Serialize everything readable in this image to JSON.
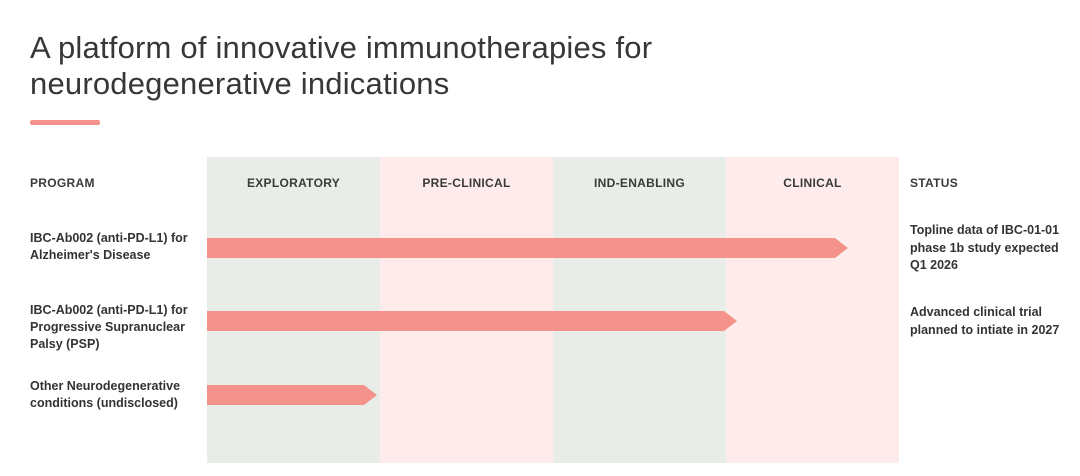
{
  "title": {
    "line1": "A platform of innovative immunotherapies for",
    "line2": "neurodegenerative indications"
  },
  "colors": {
    "accent_salmon": "#f5928b",
    "column_green": "#e9ede7",
    "column_pink": "#fdeceb",
    "text_dark": "#373737"
  },
  "chart_data": {
    "type": "bar",
    "title": "A platform of innovative immunotherapies for neurodegenerative indications",
    "columns": [
      "PROGRAM",
      "EXPLORATORY",
      "PRE-CLINICAL",
      "IND-ENABLING",
      "CLINICAL",
      "STATUS"
    ],
    "phases": [
      "EXPLORATORY",
      "PRE-CLINICAL",
      "IND-ENABLING",
      "CLINICAL"
    ],
    "xlim_phases": [
      0,
      4
    ],
    "rows": [
      {
        "program": "IBC-Ab002 (anti-PD-L1) for Alzheimer's Disease",
        "extent_phases": 3.7,
        "arrow_end_pct": 92.5,
        "status": "Topline data of IBC-01-01 phase 1b study expected Q1 2026"
      },
      {
        "program": "IBC-Ab002 (anti-PD-L1) for Progressive Supranuclear Palsy (PSP)",
        "extent_phases": 3.05,
        "arrow_end_pct": 76.5,
        "status": "Advanced clinical trial planned to intiate in 2027"
      },
      {
        "program": "Other Neurodegenerative conditions (undisclosed)",
        "extent_phases": 1.0,
        "arrow_end_pct": 24.5,
        "status": ""
      }
    ]
  }
}
